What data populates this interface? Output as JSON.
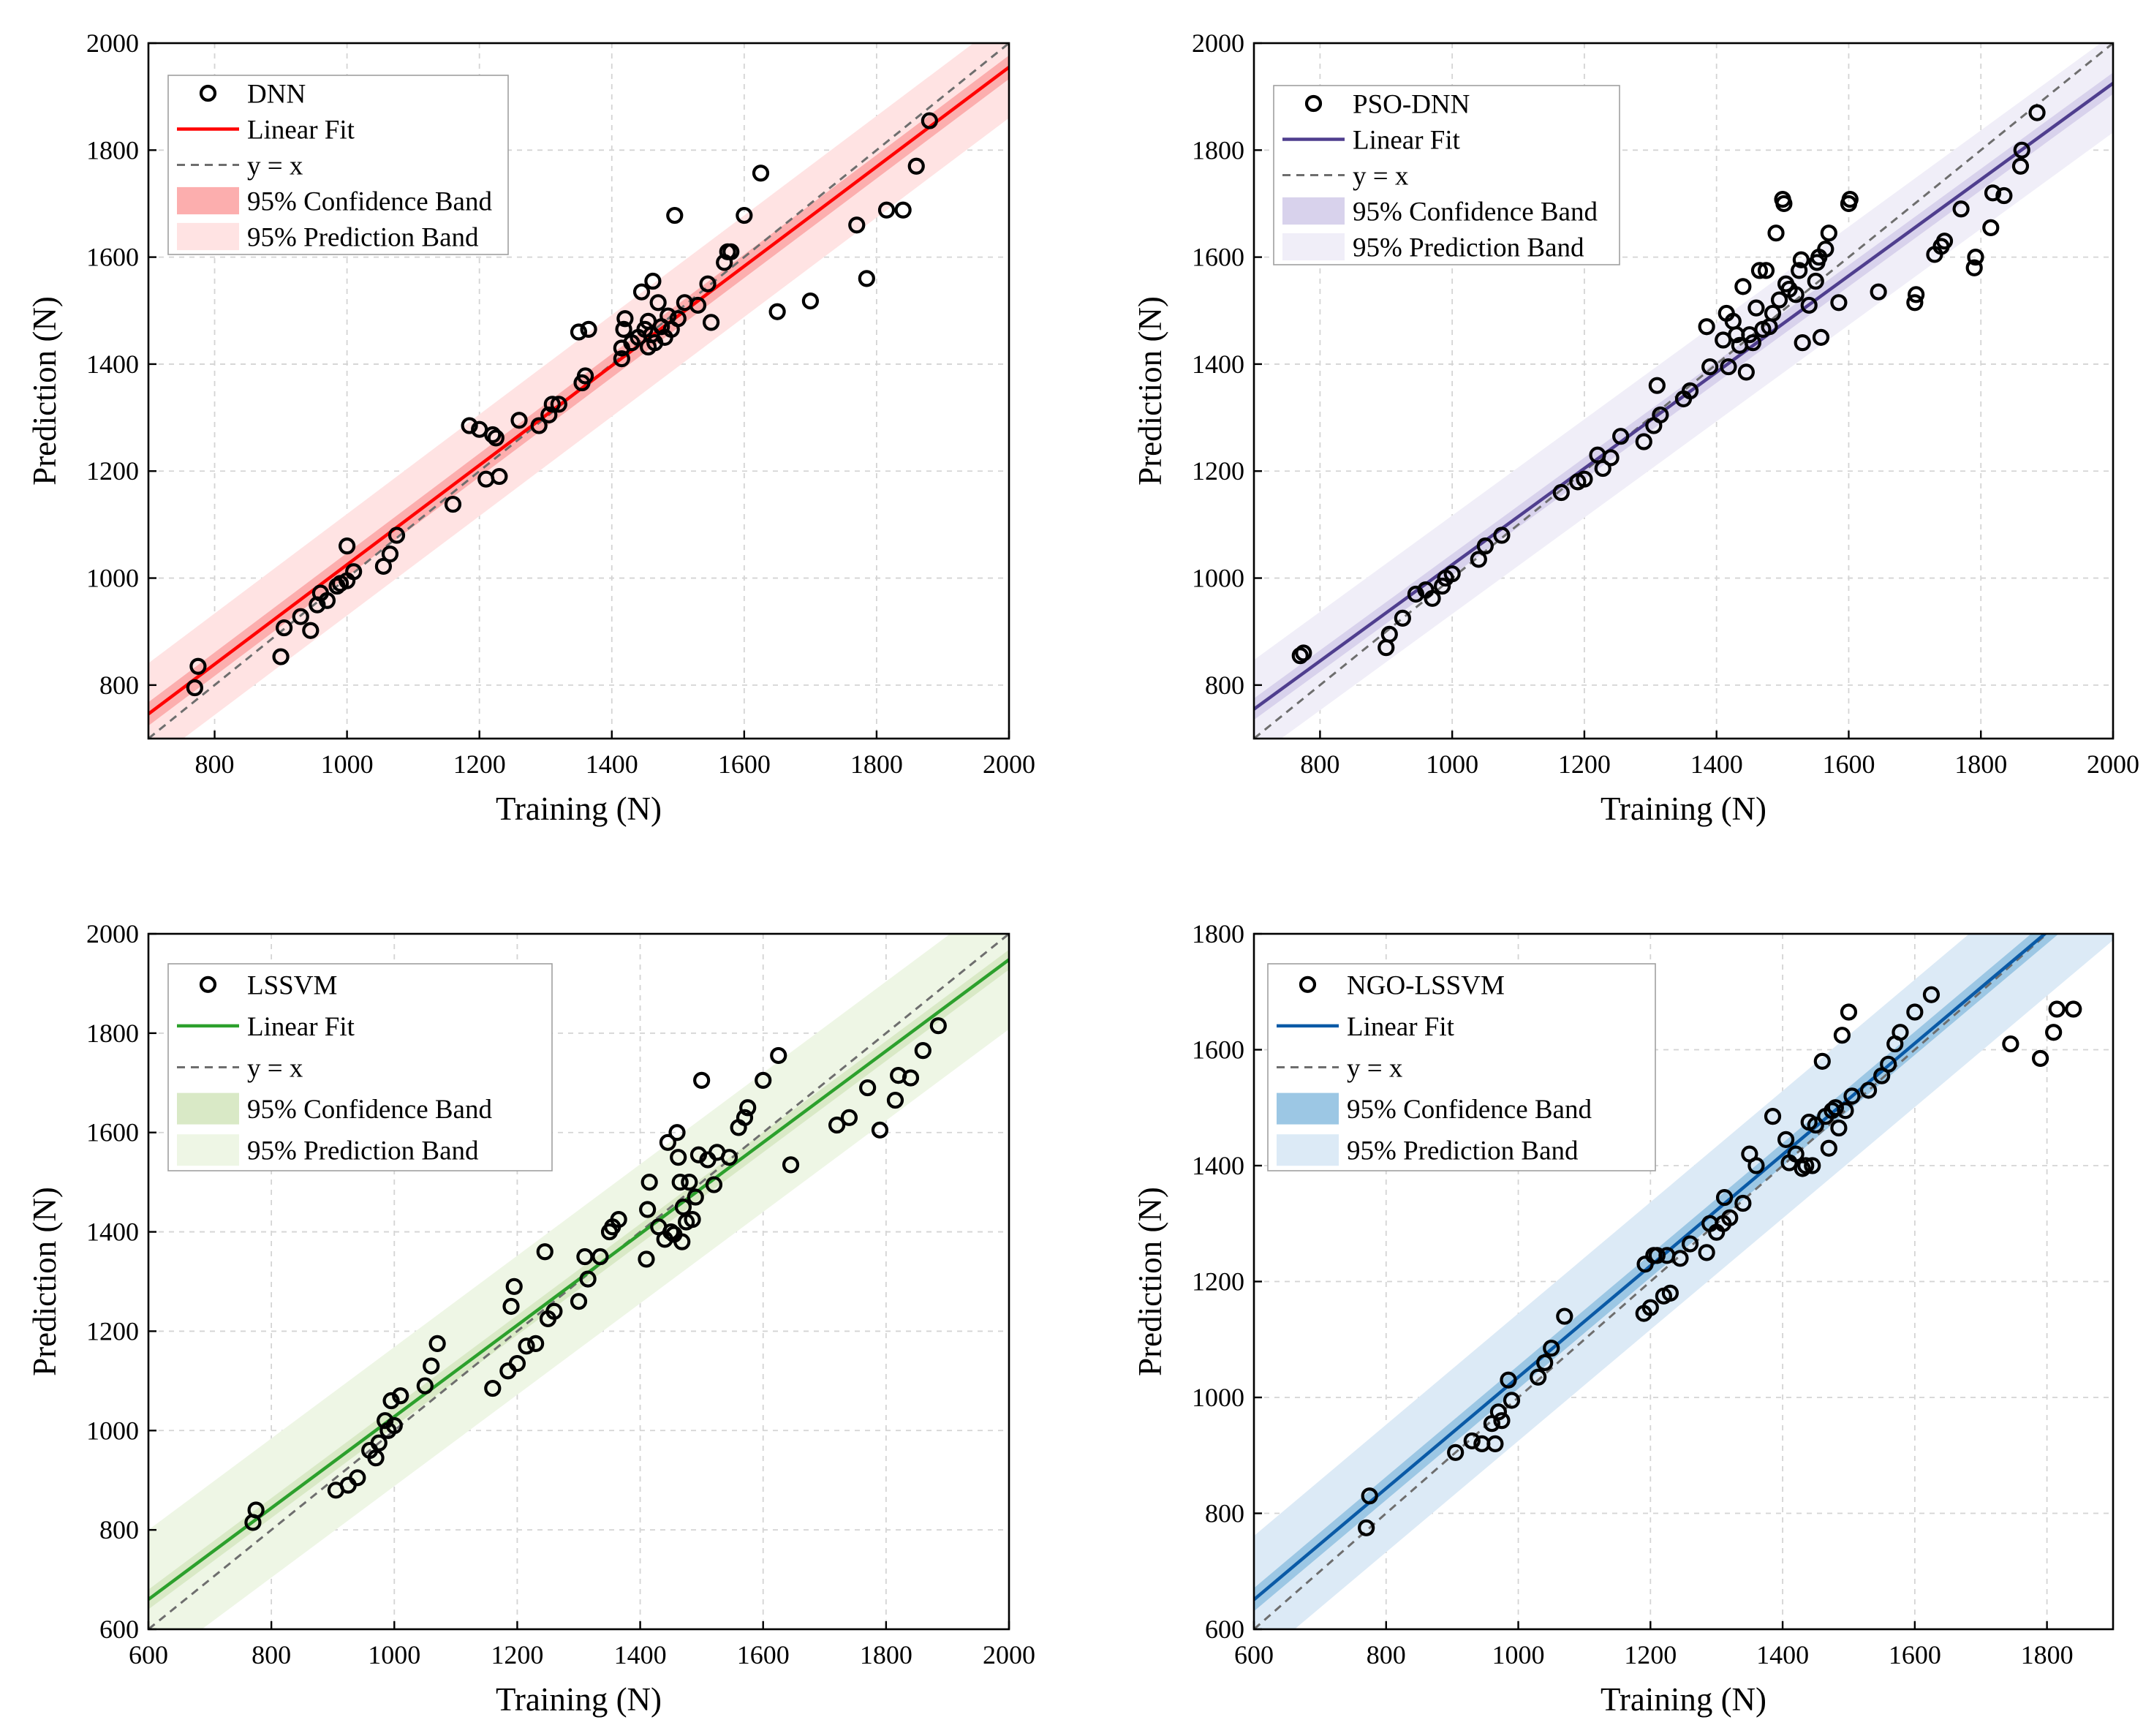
{
  "chart_data": [
    {
      "type": "scatter",
      "id": "dnn",
      "xlabel": "Training (N)",
      "ylabel": "Prediction (N)",
      "xlim": [
        700,
        2000
      ],
      "ylim": [
        700,
        2000
      ],
      "xticks": [
        800,
        1000,
        1200,
        1400,
        1600,
        1800,
        2000
      ],
      "yticks": [
        800,
        1000,
        1200,
        1400,
        1600,
        1800,
        2000
      ],
      "grid": true,
      "legend_position": "top-left",
      "colors": {
        "line": "#ff0000",
        "confidence": "#fcaeae",
        "prediction": "#ffe3e3"
      },
      "fit": {
        "slope": 0.93,
        "intercept": 95
      },
      "conf_half_width": 22,
      "pred_half_width": 95,
      "legend": {
        "points": "DNN",
        "fit": "Linear Fit",
        "identity": "y = x",
        "confidence": "95% Confidence Band",
        "prediction": "95% Prediction Band"
      },
      "points": [
        [
          770,
          795
        ],
        [
          775,
          835
        ],
        [
          900,
          853
        ],
        [
          905,
          907
        ],
        [
          930,
          928
        ],
        [
          945,
          902
        ],
        [
          955,
          950
        ],
        [
          960,
          972
        ],
        [
          970,
          958
        ],
        [
          985,
          985
        ],
        [
          990,
          990
        ],
        [
          1000,
          995
        ],
        [
          1000,
          1060
        ],
        [
          1010,
          1012
        ],
        [
          1055,
          1022
        ],
        [
          1065,
          1045
        ],
        [
          1075,
          1080
        ],
        [
          1160,
          1138
        ],
        [
          1185,
          1285
        ],
        [
          1200,
          1278
        ],
        [
          1210,
          1185
        ],
        [
          1220,
          1268
        ],
        [
          1225,
          1262
        ],
        [
          1230,
          1190
        ],
        [
          1260,
          1295
        ],
        [
          1290,
          1285
        ],
        [
          1305,
          1305
        ],
        [
          1310,
          1325
        ],
        [
          1320,
          1325
        ],
        [
          1350,
          1460
        ],
        [
          1355,
          1365
        ],
        [
          1360,
          1378
        ],
        [
          1365,
          1465
        ],
        [
          1415,
          1410
        ],
        [
          1415,
          1430
        ],
        [
          1418,
          1465
        ],
        [
          1420,
          1485
        ],
        [
          1430,
          1440
        ],
        [
          1440,
          1450
        ],
        [
          1445,
          1535
        ],
        [
          1450,
          1465
        ],
        [
          1455,
          1480
        ],
        [
          1455,
          1432
        ],
        [
          1460,
          1455
        ],
        [
          1462,
          1555
        ],
        [
          1465,
          1440
        ],
        [
          1470,
          1515
        ],
        [
          1475,
          1470
        ],
        [
          1480,
          1450
        ],
        [
          1485,
          1490
        ],
        [
          1490,
          1465
        ],
        [
          1495,
          1678
        ],
        [
          1500,
          1485
        ],
        [
          1510,
          1515
        ],
        [
          1530,
          1510
        ],
        [
          1545,
          1550
        ],
        [
          1550,
          1478
        ],
        [
          1570,
          1590
        ],
        [
          1575,
          1610
        ],
        [
          1580,
          1610
        ],
        [
          1600,
          1678
        ],
        [
          1625,
          1757
        ],
        [
          1650,
          1498
        ],
        [
          1700,
          1518
        ],
        [
          1770,
          1660
        ],
        [
          1785,
          1560
        ],
        [
          1815,
          1688
        ],
        [
          1840,
          1688
        ],
        [
          1860,
          1770
        ],
        [
          1880,
          1855
        ]
      ]
    },
    {
      "type": "scatter",
      "id": "pso-dnn",
      "xlabel": "Training (N)",
      "ylabel": "Prediction (N)",
      "xlim": [
        700,
        2000
      ],
      "ylim": [
        700,
        2000
      ],
      "xticks": [
        800,
        1000,
        1200,
        1400,
        1600,
        1800,
        2000
      ],
      "yticks": [
        800,
        1000,
        1200,
        1400,
        1600,
        1800,
        2000
      ],
      "grid": true,
      "legend_position": "top-left",
      "colors": {
        "line": "#4f3e8e",
        "confidence": "#d8d2ec",
        "prediction": "#f0eef8"
      },
      "fit": {
        "slope": 0.9,
        "intercept": 125
      },
      "conf_half_width": 20,
      "pred_half_width": 92,
      "legend": {
        "points": "PSO-DNN",
        "fit": "Linear Fit",
        "identity": "y = x",
        "confidence": "95% Confidence Band",
        "prediction": "95% Prediction Band"
      },
      "points": [
        [
          770,
          855
        ],
        [
          775,
          860
        ],
        [
          900,
          870
        ],
        [
          905,
          895
        ],
        [
          925,
          925
        ],
        [
          945,
          970
        ],
        [
          960,
          978
        ],
        [
          970,
          962
        ],
        [
          985,
          985
        ],
        [
          990,
          1000
        ],
        [
          1000,
          1008
        ],
        [
          1040,
          1035
        ],
        [
          1050,
          1060
        ],
        [
          1075,
          1080
        ],
        [
          1165,
          1160
        ],
        [
          1190,
          1180
        ],
        [
          1200,
          1185
        ],
        [
          1220,
          1230
        ],
        [
          1228,
          1205
        ],
        [
          1240,
          1225
        ],
        [
          1255,
          1265
        ],
        [
          1290,
          1255
        ],
        [
          1305,
          1285
        ],
        [
          1310,
          1360
        ],
        [
          1315,
          1305
        ],
        [
          1350,
          1335
        ],
        [
          1360,
          1350
        ],
        [
          1385,
          1470
        ],
        [
          1390,
          1395
        ],
        [
          1410,
          1445
        ],
        [
          1415,
          1495
        ],
        [
          1418,
          1395
        ],
        [
          1425,
          1480
        ],
        [
          1430,
          1455
        ],
        [
          1435,
          1435
        ],
        [
          1440,
          1545
        ],
        [
          1445,
          1385
        ],
        [
          1450,
          1455
        ],
        [
          1455,
          1440
        ],
        [
          1460,
          1505
        ],
        [
          1465,
          1575
        ],
        [
          1470,
          1465
        ],
        [
          1475,
          1575
        ],
        [
          1480,
          1470
        ],
        [
          1485,
          1495
        ],
        [
          1490,
          1645
        ],
        [
          1495,
          1520
        ],
        [
          1500,
          1708
        ],
        [
          1502,
          1700
        ],
        [
          1505,
          1550
        ],
        [
          1510,
          1540
        ],
        [
          1520,
          1530
        ],
        [
          1525,
          1575
        ],
        [
          1528,
          1595
        ],
        [
          1530,
          1440
        ],
        [
          1540,
          1510
        ],
        [
          1550,
          1555
        ],
        [
          1552,
          1590
        ],
        [
          1555,
          1600
        ],
        [
          1558,
          1450
        ],
        [
          1565,
          1615
        ],
        [
          1570,
          1645
        ],
        [
          1585,
          1515
        ],
        [
          1600,
          1700
        ],
        [
          1602,
          1708
        ],
        [
          1645,
          1535
        ],
        [
          1700,
          1515
        ],
        [
          1702,
          1530
        ],
        [
          1730,
          1605
        ],
        [
          1740,
          1620
        ],
        [
          1745,
          1630
        ],
        [
          1770,
          1690
        ],
        [
          1790,
          1580
        ],
        [
          1792,
          1600
        ],
        [
          1815,
          1655
        ],
        [
          1818,
          1720
        ],
        [
          1835,
          1715
        ],
        [
          1860,
          1770
        ],
        [
          1862,
          1800
        ],
        [
          1885,
          1870
        ]
      ]
    },
    {
      "type": "scatter",
      "id": "lssvm",
      "xlabel": "Training (N)",
      "ylabel": "Prediction (N)",
      "xlim": [
        600,
        2000
      ],
      "ylim": [
        600,
        2000
      ],
      "xticks": [
        600,
        800,
        1000,
        1200,
        1400,
        1600,
        1800,
        2000
      ],
      "yticks": [
        600,
        800,
        1000,
        1200,
        1400,
        1600,
        1800,
        2000
      ],
      "grid": true,
      "legend_position": "top-left",
      "colors": {
        "line": "#2ca02c",
        "confidence": "#d9e9c6",
        "prediction": "#eef6e5"
      },
      "fit": {
        "slope": 0.92,
        "intercept": 108
      },
      "conf_half_width": 20,
      "pred_half_width": 140,
      "legend": {
        "points": "LSSVM",
        "fit": "Linear Fit",
        "identity": "y = x",
        "confidence": "95% Confidence Band",
        "prediction": "95% Prediction Band"
      },
      "points": [
        [
          770,
          815
        ],
        [
          775,
          840
        ],
        [
          905,
          880
        ],
        [
          925,
          890
        ],
        [
          940,
          905
        ],
        [
          960,
          960
        ],
        [
          970,
          945
        ],
        [
          975,
          975
        ],
        [
          985,
          1020
        ],
        [
          990,
          1000
        ],
        [
          995,
          1060
        ],
        [
          1000,
          1010
        ],
        [
          1010,
          1070
        ],
        [
          1050,
          1090
        ],
        [
          1060,
          1130
        ],
        [
          1070,
          1175
        ],
        [
          1160,
          1085
        ],
        [
          1185,
          1120
        ],
        [
          1190,
          1250
        ],
        [
          1195,
          1290
        ],
        [
          1200,
          1135
        ],
        [
          1215,
          1170
        ],
        [
          1230,
          1175
        ],
        [
          1245,
          1360
        ],
        [
          1250,
          1225
        ],
        [
          1260,
          1240
        ],
        [
          1300,
          1260
        ],
        [
          1310,
          1350
        ],
        [
          1315,
          1305
        ],
        [
          1335,
          1350
        ],
        [
          1350,
          1400
        ],
        [
          1355,
          1410
        ],
        [
          1365,
          1425
        ],
        [
          1410,
          1345
        ],
        [
          1412,
          1445
        ],
        [
          1415,
          1500
        ],
        [
          1430,
          1410
        ],
        [
          1440,
          1385
        ],
        [
          1445,
          1580
        ],
        [
          1450,
          1400
        ],
        [
          1455,
          1395
        ],
        [
          1460,
          1600
        ],
        [
          1462,
          1550
        ],
        [
          1465,
          1500
        ],
        [
          1468,
          1380
        ],
        [
          1470,
          1450
        ],
        [
          1475,
          1420
        ],
        [
          1480,
          1500
        ],
        [
          1485,
          1425
        ],
        [
          1490,
          1470
        ],
        [
          1495,
          1555
        ],
        [
          1500,
          1705
        ],
        [
          1510,
          1545
        ],
        [
          1520,
          1495
        ],
        [
          1525,
          1560
        ],
        [
          1545,
          1550
        ],
        [
          1560,
          1610
        ],
        [
          1570,
          1630
        ],
        [
          1575,
          1650
        ],
        [
          1600,
          1705
        ],
        [
          1625,
          1755
        ],
        [
          1645,
          1535
        ],
        [
          1720,
          1615
        ],
        [
          1740,
          1630
        ],
        [
          1770,
          1690
        ],
        [
          1790,
          1605
        ],
        [
          1815,
          1665
        ],
        [
          1820,
          1715
        ],
        [
          1840,
          1710
        ],
        [
          1860,
          1765
        ],
        [
          1885,
          1815
        ]
      ]
    },
    {
      "type": "scatter",
      "id": "ngo-lssvm",
      "xlabel": "Training (N)",
      "ylabel": "Prediction (N)",
      "xlim": [
        600,
        1900
      ],
      "ylim": [
        600,
        1800
      ],
      "xticks": [
        600,
        800,
        1000,
        1200,
        1400,
        1600,
        1800
      ],
      "yticks": [
        600,
        800,
        1000,
        1200,
        1400,
        1600,
        1800
      ],
      "grid": true,
      "legend_position": "top-left",
      "colors": {
        "line": "#0a5aa6",
        "confidence": "#9cc7e4",
        "prediction": "#dceaf6"
      },
      "fit": {
        "slope": 0.96,
        "intercept": 75
      },
      "conf_half_width": 20,
      "pred_half_width": 110,
      "legend": {
        "points": "NGO-LSSVM",
        "fit": "Linear Fit",
        "identity": "y = x",
        "confidence": "95% Confidence Band",
        "prediction": "95% Prediction Band"
      },
      "points": [
        [
          770,
          775
        ],
        [
          775,
          830
        ],
        [
          905,
          905
        ],
        [
          930,
          925
        ],
        [
          945,
          920
        ],
        [
          960,
          955
        ],
        [
          965,
          920
        ],
        [
          970,
          975
        ],
        [
          975,
          960
        ],
        [
          985,
          1030
        ],
        [
          990,
          995
        ],
        [
          1030,
          1035
        ],
        [
          1040,
          1060
        ],
        [
          1050,
          1085
        ],
        [
          1070,
          1140
        ],
        [
          1190,
          1145
        ],
        [
          1192,
          1230
        ],
        [
          1200,
          1155
        ],
        [
          1205,
          1245
        ],
        [
          1210,
          1245
        ],
        [
          1220,
          1175
        ],
        [
          1225,
          1245
        ],
        [
          1230,
          1180
        ],
        [
          1245,
          1240
        ],
        [
          1260,
          1265
        ],
        [
          1285,
          1250
        ],
        [
          1290,
          1300
        ],
        [
          1300,
          1285
        ],
        [
          1310,
          1300
        ],
        [
          1312,
          1345
        ],
        [
          1320,
          1310
        ],
        [
          1340,
          1335
        ],
        [
          1350,
          1420
        ],
        [
          1360,
          1400
        ],
        [
          1385,
          1485
        ],
        [
          1405,
          1445
        ],
        [
          1410,
          1405
        ],
        [
          1420,
          1420
        ],
        [
          1430,
          1395
        ],
        [
          1435,
          1400
        ],
        [
          1440,
          1475
        ],
        [
          1445,
          1400
        ],
        [
          1450,
          1470
        ],
        [
          1460,
          1580
        ],
        [
          1465,
          1485
        ],
        [
          1470,
          1430
        ],
        [
          1475,
          1495
        ],
        [
          1480,
          1500
        ],
        [
          1485,
          1465
        ],
        [
          1490,
          1625
        ],
        [
          1495,
          1495
        ],
        [
          1500,
          1665
        ],
        [
          1505,
          1520
        ],
        [
          1530,
          1530
        ],
        [
          1550,
          1555
        ],
        [
          1560,
          1575
        ],
        [
          1570,
          1610
        ],
        [
          1578,
          1630
        ],
        [
          1600,
          1665
        ],
        [
          1625,
          1695
        ],
        [
          1745,
          1610
        ],
        [
          1790,
          1585
        ],
        [
          1810,
          1630
        ],
        [
          1815,
          1670
        ],
        [
          1840,
          1670
        ]
      ]
    }
  ]
}
